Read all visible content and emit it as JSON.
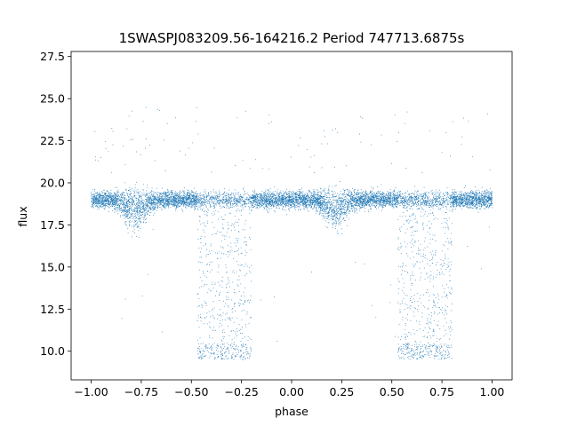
{
  "chart_data": {
    "type": "scatter",
    "title": "1SWASPJ083209.56-164216.2 Period 747713.6875s",
    "xlabel": "phase",
    "ylabel": "flux",
    "xlim": [
      -1.1,
      1.1
    ],
    "ylim": [
      8.3,
      27.8
    ],
    "xticks": [
      -1.0,
      -0.75,
      -0.5,
      -0.25,
      0.0,
      0.25,
      0.5,
      0.75,
      1.0
    ],
    "xtick_labels": [
      "−1.00",
      "−0.75",
      "−0.50",
      "−0.25",
      "0.00",
      "0.25",
      "0.50",
      "0.75",
      "1.00"
    ],
    "yticks": [
      10.0,
      12.5,
      15.0,
      17.5,
      20.0,
      22.5,
      25.0,
      27.5
    ],
    "ytick_labels": [
      "10.0",
      "12.5",
      "15.0",
      "17.5",
      "20.0",
      "22.5",
      "25.0",
      "27.5"
    ],
    "grid": false,
    "marker_color": "#1f77b4",
    "series": [
      {
        "phase_range": [
          -1.0,
          1.0
        ],
        "baseline_flux": 19.0,
        "baseline_scatter": [
          17.3,
          20.2
        ],
        "eclipses": [
          {
            "phase_range": [
              -0.47,
              -0.2
            ],
            "flux_range": [
              9.5,
              19.0
            ]
          },
          {
            "phase_range": [
              0.53,
              0.8
            ],
            "flux_range": [
              9.5,
              19.0
            ]
          }
        ],
        "secondary_dips": [
          {
            "phase_center": -0.78,
            "flux_min": 16.5
          },
          {
            "phase_center": 0.22,
            "flux_min": 16.5
          }
        ]
      }
    ]
  }
}
